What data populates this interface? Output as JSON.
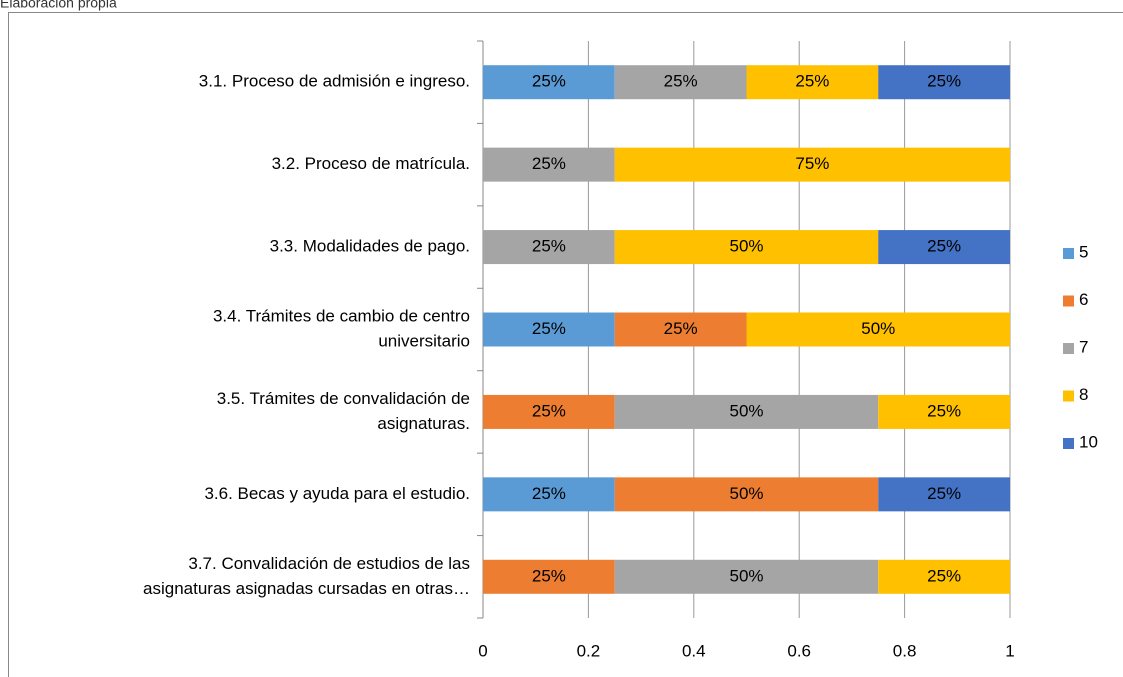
{
  "chart_data": {
    "type": "stacked_barh",
    "note": "Elaboración propia",
    "categories": [
      [
        "3.1. Proceso de admisión e ingreso."
      ],
      [
        "3.2. Proceso de matrícula."
      ],
      [
        "3.3. Modalidades de pago."
      ],
      [
        "3.4. Trámites de cambio de centro",
        "universitario"
      ],
      [
        "3.5. Trámites de convalidación de",
        "asignaturas."
      ],
      [
        "3.6. Becas y ayuda para el estudio."
      ],
      [
        "3.7. Convalidación de estudios de las",
        "asignaturas asignadas cursadas en otras…"
      ]
    ],
    "series": [
      {
        "name": "5",
        "color": "#5b9bd5",
        "values": [
          0.25,
          null,
          null,
          0.25,
          null,
          0.25,
          null
        ],
        "value_labels": [
          "25%",
          null,
          null,
          "25%",
          null,
          "25%",
          null
        ]
      },
      {
        "name": "6",
        "color": "#ed7d31",
        "values": [
          null,
          null,
          null,
          0.25,
          0.25,
          0.5,
          0.25
        ],
        "value_labels": [
          null,
          null,
          null,
          "25%",
          "25%",
          "50%",
          "25%"
        ]
      },
      {
        "name": "7",
        "color": "#a5a5a5",
        "values": [
          0.25,
          0.25,
          0.25,
          null,
          0.5,
          null,
          0.5
        ],
        "value_labels": [
          "25%",
          "25%",
          "25%",
          null,
          "50%",
          null,
          "50%"
        ]
      },
      {
        "name": "8",
        "color": "#ffc000",
        "values": [
          0.25,
          0.75,
          0.5,
          0.5,
          0.25,
          null,
          0.25
        ],
        "value_labels": [
          "25%",
          "75%",
          "50%",
          "50%",
          "25%",
          null,
          "25%"
        ]
      },
      {
        "name": "10",
        "color": "#4472c4",
        "values": [
          0.25,
          null,
          0.25,
          null,
          null,
          0.25,
          null
        ],
        "value_labels": [
          "25%",
          null,
          "25%",
          null,
          null,
          "25%",
          null
        ]
      }
    ],
    "xlim": [
      0,
      1
    ],
    "xticks": [
      0,
      0.2,
      0.4,
      0.6,
      0.8,
      1
    ],
    "grid": true,
    "legend": "right"
  }
}
